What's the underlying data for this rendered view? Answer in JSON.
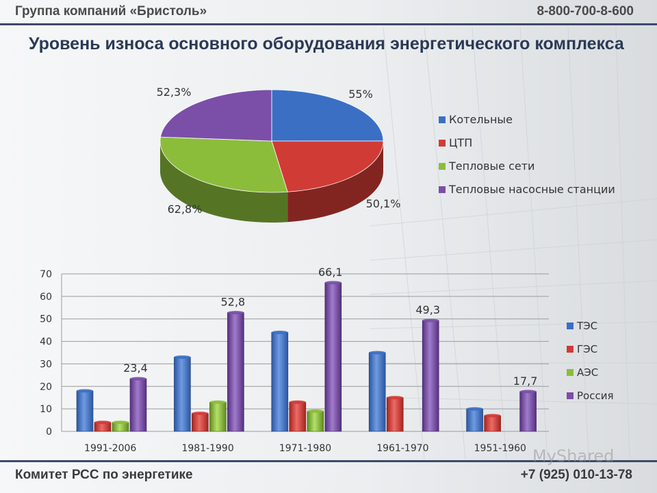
{
  "header": {
    "company": "Группа компаний «Бристоль»",
    "phone": "8-800-700-8-600"
  },
  "title": "Уровень износа основного оборудования энергетического комплекса",
  "footer": {
    "committee": "Комитет РСС по энергетике",
    "phone": "+7 (925) 010-13-78"
  },
  "watermark": "MyShared",
  "colors": {
    "blue": "#3b6fc4",
    "red": "#d13b36",
    "green": "#8bbd3a",
    "purple": "#7b4fa8"
  },
  "chart_data": [
    {
      "type": "pie",
      "title": "",
      "labels": [
        "Котельные",
        "ЦТП",
        "Тепловые сети",
        "Тепловые насосные станции"
      ],
      "values": [
        55,
        50.1,
        62.8,
        52.3
      ],
      "value_labels": [
        "55%",
        "50,1%",
        "62,8%",
        "52,3%"
      ],
      "legend_position": "right"
    },
    {
      "type": "bar",
      "title": "",
      "categories": [
        "1991-2006",
        "1981-1990",
        "1971-1980",
        "1961-1970",
        "1951-1960"
      ],
      "series": [
        {
          "name": "ТЭС",
          "values": [
            18,
            33,
            44,
            35,
            10
          ]
        },
        {
          "name": "ГЭС",
          "values": [
            4,
            8,
            13,
            15,
            7
          ]
        },
        {
          "name": "АЭС",
          "values": [
            4,
            13,
            9,
            null,
            null
          ]
        },
        {
          "name": "Россия",
          "values": [
            23.4,
            52.8,
            66.1,
            49.3,
            17.7
          ]
        }
      ],
      "data_labels": {
        "series": "Россия",
        "labels": [
          "23,4",
          "52,8",
          "66,1",
          "49,3",
          "17,7"
        ]
      },
      "yticks": [
        "0",
        "10",
        "20",
        "30",
        "40",
        "50",
        "60",
        "70"
      ],
      "ylim": [
        0,
        70
      ],
      "grid": true,
      "legend_position": "right"
    }
  ]
}
